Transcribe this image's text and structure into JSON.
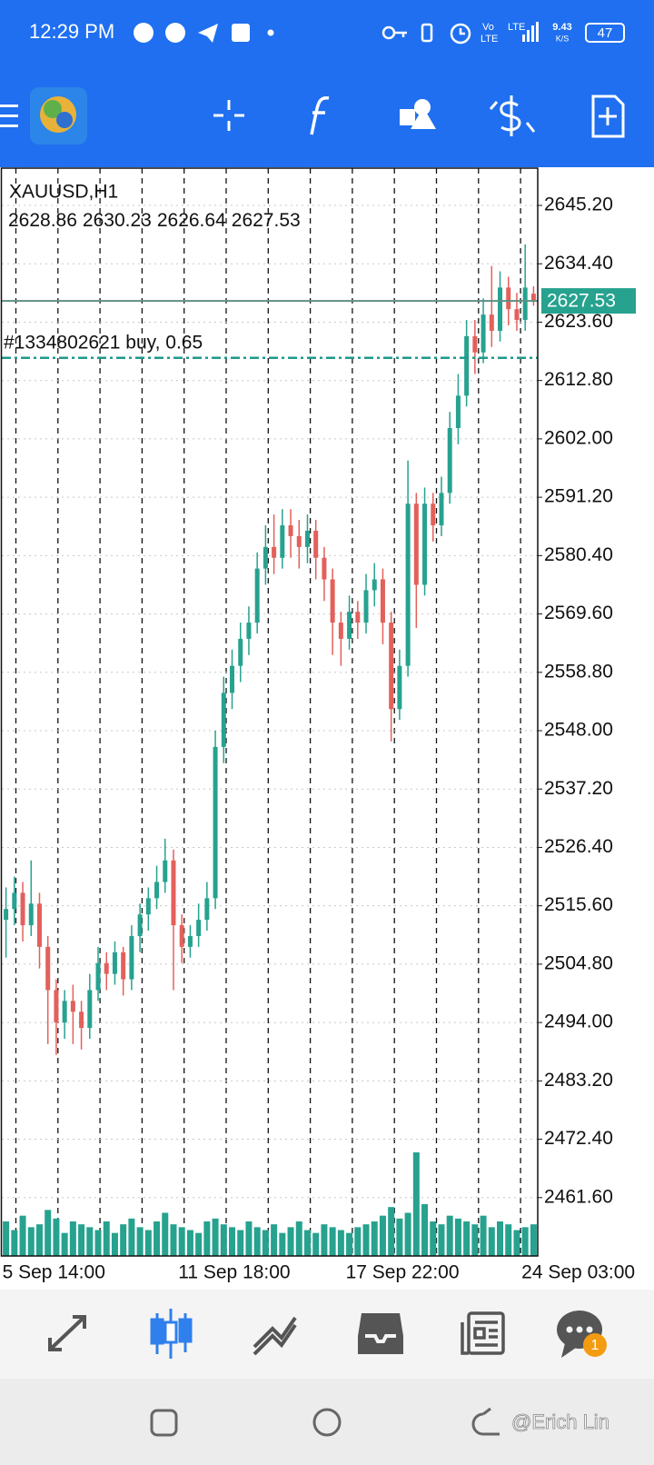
{
  "status_bar": {
    "time": "12:29 PM",
    "volte_top": "Vo",
    "volte_bottom": "LTE",
    "lte": "LTE",
    "speed": "9.43",
    "speed_unit": "K/S",
    "battery": "47"
  },
  "chart_data": {
    "type": "candlestick",
    "title": "XAUUSD,H1",
    "categories": [
      "5 Sep 14:00",
      null,
      null,
      null,
      null,
      null,
      null,
      null,
      null,
      null,
      null,
      null,
      null,
      null,
      null,
      null,
      null,
      null,
      null,
      null,
      null,
      "11 Sep 18:00",
      null,
      null,
      null,
      null,
      null,
      null,
      null,
      null,
      null,
      null,
      null,
      null,
      null,
      null,
      null,
      null,
      null,
      null,
      null,
      "17 Sep 22:00",
      null,
      null,
      null,
      null,
      null,
      null,
      null,
      null,
      null,
      null,
      null,
      null,
      null,
      null,
      null,
      null,
      null,
      null,
      null,
      null,
      "24 Sep 03:00",
      null
    ],
    "open": [
      2513,
      2515,
      2518,
      2512,
      2516,
      2508,
      2500,
      2494,
      2498,
      2496,
      2493,
      2500,
      2505,
      2503,
      2507,
      2502,
      2510,
      2514,
      2517,
      2520,
      2524,
      2512,
      2508,
      2510,
      2513,
      2517,
      2545,
      2555,
      2560,
      2565,
      2568,
      2578,
      2582,
      2580,
      2586,
      2584,
      2582,
      2585,
      2580,
      2576,
      2568,
      2565,
      2570,
      2568,
      2574,
      2576,
      2568,
      2552,
      2560,
      2590,
      2575,
      2590,
      2586,
      2592,
      2604,
      2610,
      2621,
      2618,
      2625,
      2622,
      2630,
      2626,
      2624,
      2628.86
    ],
    "high": [
      2519,
      2521,
      2520,
      2524,
      2518,
      2510,
      2502,
      2500,
      2501,
      2498,
      2503,
      2508,
      2507,
      2509,
      2508,
      2512,
      2516,
      2519,
      2523,
      2528,
      2526,
      2514,
      2512,
      2516,
      2520,
      2548,
      2558,
      2563,
      2568,
      2571,
      2581,
      2586,
      2588,
      2589,
      2589,
      2587,
      2588,
      2587,
      2582,
      2578,
      2570,
      2573,
      2572,
      2577,
      2579,
      2578,
      2570,
      2563,
      2598,
      2592,
      2593,
      2592,
      2595,
      2607,
      2614,
      2624,
      2624,
      2628,
      2634,
      2633,
      2632,
      2629,
      2638,
      2630.23
    ],
    "low": [
      2506,
      2512,
      2509,
      2510,
      2504,
      2490,
      2488,
      2491,
      2490,
      2489,
      2491,
      2498,
      2500,
      2501,
      2499,
      2500,
      2507,
      2511,
      2515,
      2518,
      2500,
      2505,
      2506,
      2508,
      2511,
      2515,
      2542,
      2552,
      2557,
      2562,
      2566,
      2575,
      2577,
      2578,
      2580,
      2578,
      2579,
      2576,
      2572,
      2562,
      2560,
      2563,
      2565,
      2566,
      2571,
      2564,
      2546,
      2550,
      2558,
      2567,
      2573,
      2583,
      2584,
      2590,
      2601,
      2608,
      2614,
      2616,
      2619,
      2620,
      2623,
      2622,
      2622,
      2626.64
    ],
    "close": [
      2515,
      2518,
      2512,
      2516,
      2508,
      2500,
      2494,
      2498,
      2496,
      2493,
      2500,
      2505,
      2503,
      2507,
      2502,
      2510,
      2514,
      2517,
      2520,
      2524,
      2512,
      2508,
      2510,
      2513,
      2517,
      2545,
      2555,
      2560,
      2565,
      2568,
      2578,
      2582,
      2580,
      2586,
      2584,
      2582,
      2585,
      2580,
      2576,
      2568,
      2565,
      2570,
      2568,
      2574,
      2576,
      2568,
      2552,
      2560,
      2590,
      2575,
      2590,
      2586,
      2592,
      2604,
      2610,
      2621,
      2618,
      2625,
      2622,
      2630,
      2626,
      2624,
      2630,
      2627.53
    ],
    "volume": [
      60,
      45,
      70,
      50,
      55,
      80,
      65,
      40,
      60,
      55,
      50,
      45,
      60,
      40,
      55,
      65,
      50,
      45,
      60,
      75,
      55,
      50,
      45,
      40,
      60,
      65,
      55,
      50,
      45,
      60,
      50,
      45,
      55,
      40,
      50,
      60,
      45,
      40,
      55,
      50,
      45,
      40,
      50,
      55,
      60,
      70,
      85,
      65,
      75,
      180,
      90,
      60,
      55,
      70,
      65,
      60,
      55,
      70,
      50,
      60,
      55,
      45,
      50,
      55
    ],
    "volume_ylim": [
      0,
      300
    ],
    "bull_color": "#26a28f",
    "bear_color": "#e3605b",
    "volume_color": "#26a28f",
    "order": {
      "label": "#1334802621 buy, 0.65",
      "price": 2617.0,
      "color": "#1e9a8c"
    },
    "ylim": [
      2450.8,
      2652.1
    ],
    "yticks": [
      {
        "value": 2645.2,
        "label": "2645.20"
      },
      {
        "value": 2634.4,
        "label": "2634.40"
      },
      {
        "value": 2623.6,
        "label": "2623.60"
      },
      {
        "value": 2612.8,
        "label": "2612.80"
      },
      {
        "value": 2602.0,
        "label": "2602.00"
      },
      {
        "value": 2591.2,
        "label": "2591.20"
      },
      {
        "value": 2580.4,
        "label": "2580.40"
      },
      {
        "value": 2569.6,
        "label": "2569.60"
      },
      {
        "value": 2558.8,
        "label": "2558.80"
      },
      {
        "value": 2548.0,
        "label": "2548.00"
      },
      {
        "value": 2537.2,
        "label": "2537.20"
      },
      {
        "value": 2526.4,
        "label": "2526.40"
      },
      {
        "value": 2515.6,
        "label": "2515.60"
      },
      {
        "value": 2504.8,
        "label": "2504.80"
      },
      {
        "value": 2494.0,
        "label": "2494.00"
      },
      {
        "value": 2483.2,
        "label": "2483.20"
      },
      {
        "value": 2472.4,
        "label": "2472.40"
      },
      {
        "value": 2461.6,
        "label": "2461.60"
      }
    ],
    "grid": true
  },
  "toolbar": {
    "badge": "1"
  },
  "watermark": "@Erich Lin"
}
